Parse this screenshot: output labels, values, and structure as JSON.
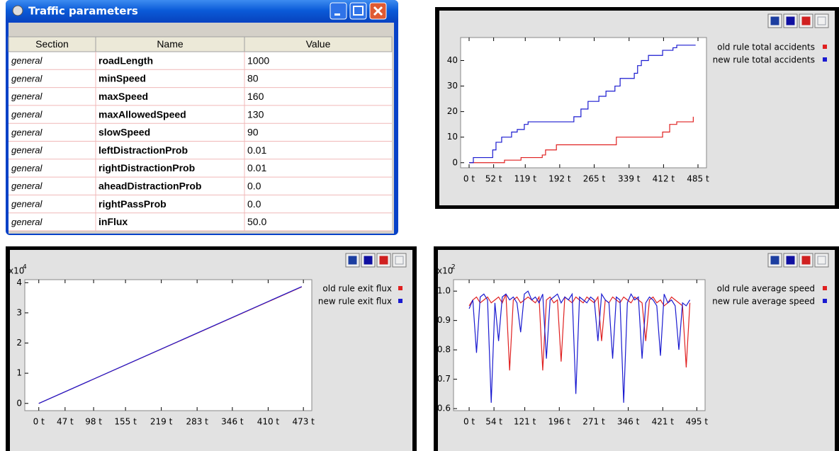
{
  "window": {
    "title": "Traffic parameters",
    "table": {
      "columns": [
        "Section",
        "Name",
        "Value"
      ],
      "rows": [
        [
          "general",
          "roadLength",
          "1000"
        ],
        [
          "general",
          "minSpeed",
          "80"
        ],
        [
          "general",
          "maxSpeed",
          "160"
        ],
        [
          "general",
          "maxAllowedSpeed",
          "130"
        ],
        [
          "general",
          "slowSpeed",
          "90"
        ],
        [
          "general",
          "leftDistractionProb",
          "0.01"
        ],
        [
          "general",
          "rightDistractionProb",
          "0.01"
        ],
        [
          "general",
          "aheadDistractionProb",
          "0.0"
        ],
        [
          "general",
          "rightPassProb",
          "0.0"
        ],
        [
          "general",
          "inFlux",
          "50.0"
        ]
      ]
    }
  },
  "chart_data": [
    {
      "type": "line",
      "drawstyle": "steps-post",
      "legend": "right",
      "xlim": [
        -18,
        503
      ],
      "ylim": [
        -2,
        49
      ],
      "xticks": [
        {
          "value": 0,
          "label": "0 t"
        },
        {
          "value": 52,
          "label": "52 t"
        },
        {
          "value": 119,
          "label": "119 t"
        },
        {
          "value": 192,
          "label": "192 t"
        },
        {
          "value": 265,
          "label": "265 t"
        },
        {
          "value": 339,
          "label": "339 t"
        },
        {
          "value": 412,
          "label": "412 t"
        },
        {
          "value": 485,
          "label": "485 t"
        }
      ],
      "yticks": [
        0,
        10,
        20,
        30,
        40
      ],
      "series": [
        {
          "name": "old rule total accidents",
          "color": "#e02020",
          "x": [
            0,
            75,
            110,
            155,
            162,
            185,
            312,
            410,
            425,
            440,
            475
          ],
          "values": [
            0,
            1,
            2,
            3,
            5,
            7,
            10,
            12,
            15,
            16,
            18
          ]
        },
        {
          "name": "new rule total accidents",
          "color": "#1a1ad0",
          "x": [
            0,
            9,
            50,
            57,
            69,
            90,
            102,
            117,
            125,
            222,
            237,
            252,
            275,
            290,
            309,
            320,
            350,
            357,
            365,
            380,
            410,
            432,
            440,
            480
          ],
          "values": [
            0,
            2,
            5,
            8,
            10,
            12,
            13,
            15,
            16,
            18,
            21,
            24,
            26,
            28,
            30,
            33,
            35,
            38,
            40,
            42,
            44,
            45,
            46,
            46
          ]
        }
      ]
    },
    {
      "type": "line",
      "legend": "right",
      "multiplier": {
        "base": "x10",
        "exponent": "4"
      },
      "xlim": [
        -25,
        488
      ],
      "ylim": [
        -0.24,
        4.1
      ],
      "xticks": [
        {
          "value": 0,
          "label": "0 t"
        },
        {
          "value": 47,
          "label": "47 t"
        },
        {
          "value": 98,
          "label": "98 t"
        },
        {
          "value": 155,
          "label": "155 t"
        },
        {
          "value": 219,
          "label": "219 t"
        },
        {
          "value": 283,
          "label": "283 t"
        },
        {
          "value": 346,
          "label": "346 t"
        },
        {
          "value": 410,
          "label": "410 t"
        },
        {
          "value": 473,
          "label": "473 t"
        }
      ],
      "yticks": [
        0,
        1,
        2,
        3,
        4
      ],
      "x": [
        0,
        470
      ],
      "series": [
        {
          "name": "old rule exit flux",
          "color": "#e02020",
          "values": [
            0,
            3.86
          ]
        },
        {
          "name": "new rule exit flux",
          "color": "#1a1ad0",
          "values": [
            0,
            3.87
          ]
        }
      ]
    },
    {
      "type": "line",
      "legend": "right",
      "multiplier": {
        "base": "x10",
        "exponent": "2"
      },
      "xlim": [
        -34,
        513
      ],
      "ylim": [
        0.593,
        1.039
      ],
      "xticks": [
        {
          "value": 0,
          "label": "0 t"
        },
        {
          "value": 54,
          "label": "54 t"
        },
        {
          "value": 121,
          "label": "121 t"
        },
        {
          "value": 196,
          "label": "196 t"
        },
        {
          "value": 271,
          "label": "271 t"
        },
        {
          "value": 346,
          "label": "346 t"
        },
        {
          "value": 421,
          "label": "421 t"
        },
        {
          "value": 495,
          "label": "495 t"
        }
      ],
      "yticks": [
        0.6,
        0.7,
        0.8,
        0.9,
        {
          "value": 1,
          "label": "1.0"
        }
      ],
      "x": [
        0,
        8,
        16,
        24,
        32,
        40,
        48,
        56,
        64,
        72,
        80,
        88,
        96,
        104,
        112,
        120,
        128,
        136,
        144,
        152,
        160,
        168,
        176,
        184,
        192,
        200,
        208,
        216,
        224,
        232,
        240,
        248,
        256,
        264,
        272,
        280,
        288,
        296,
        304,
        312,
        320,
        328,
        336,
        344,
        352,
        360,
        368,
        376,
        384,
        392,
        400,
        408,
        416,
        424,
        432,
        440,
        448,
        456,
        464,
        472,
        480
      ],
      "series": [
        {
          "name": "old rule average speed",
          "color": "#e02020",
          "values": [
            0.95,
            0.97,
            0.98,
            0.96,
            0.97,
            0.98,
            0.96,
            0.97,
            0.98,
            0.96,
            0.99,
            0.73,
            0.97,
            0.98,
            0.96,
            0.97,
            0.98,
            0.97,
            0.96,
            0.98,
            0.73,
            0.97,
            0.98,
            0.96,
            0.97,
            0.76,
            0.98,
            0.97,
            0.96,
            0.98,
            0.97,
            0.96,
            0.98,
            0.97,
            0.96,
            0.98,
            0.83,
            0.97,
            0.96,
            0.98,
            0.97,
            0.96,
            0.98,
            0.97,
            0.96,
            0.98,
            0.97,
            0.96,
            0.83,
            0.97,
            0.98,
            0.96,
            0.97,
            0.95,
            0.96,
            0.98,
            0.97,
            0.96,
            0.95,
            0.74,
            0.96
          ]
        },
        {
          "name": "new rule average speed",
          "color": "#1a1ad0",
          "values": [
            0.94,
            0.97,
            0.79,
            0.98,
            0.99,
            0.97,
            0.62,
            0.96,
            0.83,
            0.98,
            0.99,
            0.97,
            0.98,
            0.96,
            0.86,
            0.99,
            1.0,
            0.97,
            0.98,
            0.96,
            0.99,
            0.77,
            0.97,
            0.98,
            0.99,
            0.96,
            0.98,
            0.97,
            0.99,
            0.65,
            0.98,
            0.97,
            0.96,
            0.98,
            0.97,
            0.83,
            0.99,
            0.97,
            0.96,
            0.77,
            0.98,
            0.97,
            0.62,
            0.96,
            0.99,
            0.97,
            0.98,
            0.77,
            0.96,
            0.98,
            0.97,
            0.95,
            0.78,
            0.99,
            0.96,
            0.97,
            0.95,
            0.8,
            0.96,
            0.95,
            0.97
          ]
        }
      ]
    }
  ]
}
